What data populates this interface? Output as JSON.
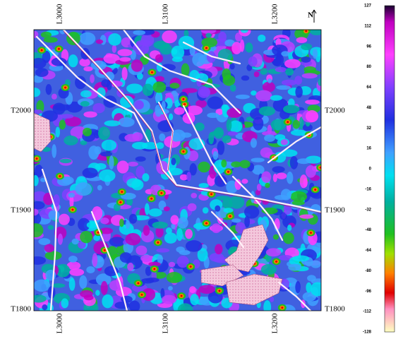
{
  "map": {
    "top_labels": [
      "L3000",
      "L3100",
      "L3200"
    ],
    "bottom_labels": [
      "L3000",
      "L3100",
      "L3200"
    ],
    "left_labels": [
      "T2000",
      "T1900",
      "T1800"
    ],
    "right_labels": [
      "T2000",
      "T1900",
      "T1800"
    ],
    "north": "N",
    "colorbar": [
      127,
      112,
      96,
      80,
      64,
      48,
      32,
      16,
      0,
      -16,
      -32,
      -48,
      -64,
      -80,
      -96,
      -112,
      -128
    ]
  }
}
